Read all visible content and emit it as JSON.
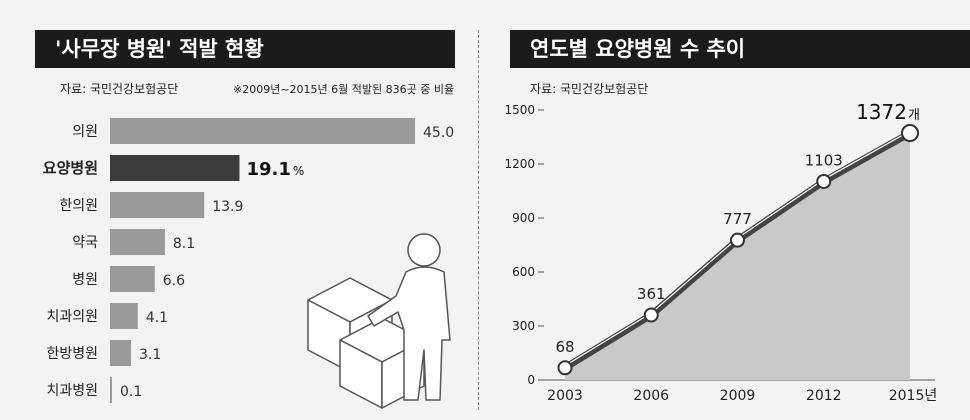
{
  "left": {
    "title": "'사무장 병원' 적발 현황",
    "source": "자료: 국민건강보험공단",
    "note": "※2009년~2015년 6월 적발된 836곳 중 비율",
    "chart_data": {
      "type": "bar",
      "orientation": "horizontal",
      "categories": [
        "의원",
        "요양병원",
        "한의원",
        "약국",
        "병원",
        "치과의원",
        "한방병원",
        "치과병원"
      ],
      "values": [
        45.0,
        19.1,
        13.9,
        8.1,
        6.6,
        4.1,
        3.1,
        0.1
      ],
      "value_labels": [
        "45.0",
        "19.1",
        "13.9",
        "8.1",
        "6.6",
        "4.1",
        "3.1",
        "0.1"
      ],
      "highlight": "요양병원",
      "highlight_unit": "%",
      "xlim": [
        0,
        45
      ],
      "colors": {
        "bar": "#9a9a9a",
        "highlight": "#3b3b3b"
      }
    }
  },
  "right": {
    "title": "연도별 요양병원 수 추이",
    "source": "자료: 국민건강보험공단",
    "chart_data": {
      "type": "line",
      "x": [
        "2003",
        "2006",
        "2009",
        "2012",
        "2015"
      ],
      "x_tick_labels": [
        "2003",
        "2006",
        "2009",
        "2012",
        "2015년"
      ],
      "values": [
        68,
        361,
        777,
        1103,
        1372
      ],
      "value_labels": [
        "68",
        "361",
        "777",
        "1103",
        "1372"
      ],
      "last_unit": "개",
      "ylim": [
        0,
        1500
      ],
      "yticks": [
        0,
        300,
        600,
        900,
        1200,
        1500
      ],
      "area_fill": true,
      "colors": {
        "line": "#444444",
        "area": "#c9c9c9"
      }
    }
  }
}
